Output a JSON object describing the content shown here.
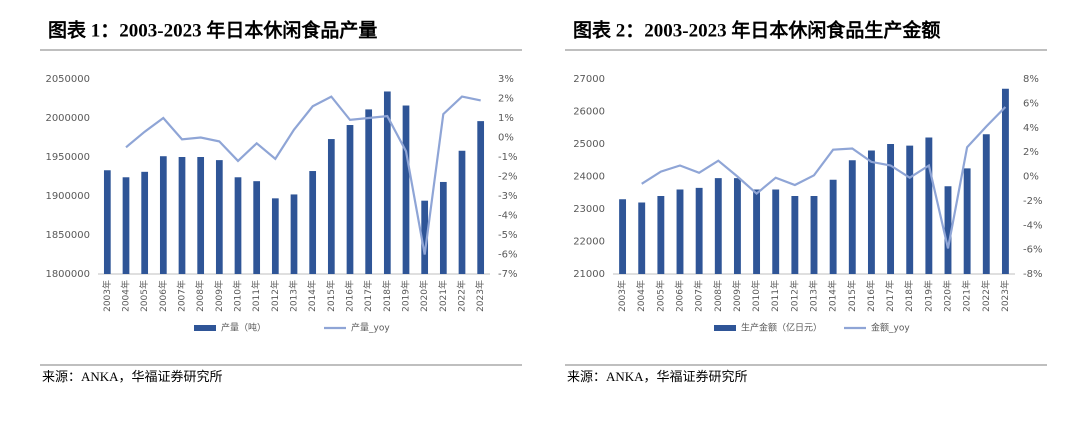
{
  "chart_data": [
    {
      "type": "bar",
      "title": "图表 1：2003-2023 年日本休闲食品产量",
      "source": "来源：ANKA，华福证券研究所",
      "categories": [
        "2003年",
        "2004年",
        "2005年",
        "2006年",
        "2007年",
        "2008年",
        "2009年",
        "2010年",
        "2011年",
        "2012年",
        "2013年",
        "2014年",
        "2015年",
        "2016年",
        "2017年",
        "2018年",
        "2019年",
        "2020年",
        "2021年",
        "2022年",
        "2023年"
      ],
      "series": [
        {
          "name": "产量（吨）",
          "type": "bar",
          "color": "#2f5597",
          "axis": "y",
          "values": [
            1933000,
            1924000,
            1931000,
            1951000,
            1950000,
            1950000,
            1946000,
            1924000,
            1919000,
            1897000,
            1902000,
            1932000,
            1973000,
            1991000,
            2011000,
            2034000,
            2016000,
            1894000,
            1918000,
            1958000,
            1996000
          ]
        },
        {
          "name": "产量_yoy",
          "type": "line",
          "color": "#8fa5d6",
          "axis": "y2",
          "values": [
            null,
            -0.5,
            0.3,
            1.0,
            -0.1,
            0.0,
            -0.2,
            -1.2,
            -0.3,
            -1.1,
            0.4,
            1.6,
            2.1,
            0.9,
            1.0,
            1.1,
            -0.7,
            -6.0,
            1.2,
            2.1,
            1.9
          ]
        }
      ],
      "ylim": [
        1800000,
        2050000
      ],
      "yticks": [
        1800000,
        1850000,
        1900000,
        1950000,
        2000000,
        2050000
      ],
      "y2lim": [
        -7,
        3
      ],
      "y2ticks": [
        {
          "value": -7,
          "label": "-7%"
        },
        {
          "value": -6,
          "label": "-6%"
        },
        {
          "value": -5,
          "label": "-5%"
        },
        {
          "value": -4,
          "label": "-4%"
        },
        {
          "value": -3,
          "label": "-3%"
        },
        {
          "value": -2,
          "label": "-2%"
        },
        {
          "value": -1,
          "label": "-1%"
        },
        {
          "value": 0,
          "label": "0%"
        },
        {
          "value": 1,
          "label": "1%"
        },
        {
          "value": 2,
          "label": "2%"
        },
        {
          "value": 3,
          "label": "3%"
        }
      ],
      "legend": "bottom"
    },
    {
      "type": "bar",
      "title": "图表 2：2003-2023 年日本休闲食品生产金额",
      "source": "来源：ANKA，华福证券研究所",
      "categories": [
        "2003年",
        "2004年",
        "2005年",
        "2006年",
        "2007年",
        "2008年",
        "2009年",
        "2010年",
        "2011年",
        "2012年",
        "2013年",
        "2014年",
        "2015年",
        "2016年",
        "2017年",
        "2018年",
        "2019年",
        "2020年",
        "2021年",
        "2022年",
        "2023年"
      ],
      "series": [
        {
          "name": "生产金额（亿日元）",
          "type": "bar",
          "color": "#2f5597",
          "axis": "y",
          "values": [
            23300,
            23200,
            23400,
            23600,
            23650,
            23950,
            23950,
            23600,
            23600,
            23400,
            23400,
            23900,
            24500,
            24800,
            25000,
            24950,
            25200,
            23700,
            24250,
            25300,
            26700
          ]
        },
        {
          "name": "金额_yoy",
          "type": "line",
          "color": "#8fa5d6",
          "axis": "y2",
          "values": [
            null,
            -0.6,
            0.4,
            0.9,
            0.3,
            1.3,
            0.0,
            -1.4,
            -0.1,
            -0.7,
            0.1,
            2.2,
            2.3,
            1.2,
            0.9,
            -0.1,
            0.9,
            -5.9,
            2.4,
            4.1,
            5.7
          ]
        }
      ],
      "ylim": [
        21000,
        27000
      ],
      "yticks": [
        21000,
        22000,
        23000,
        24000,
        25000,
        26000,
        27000
      ],
      "y2lim": [
        -8,
        8
      ],
      "y2ticks": [
        {
          "value": -8,
          "label": "-8%"
        },
        {
          "value": -6,
          "label": "-6%"
        },
        {
          "value": -4,
          "label": "-4%"
        },
        {
          "value": -2,
          "label": "-2%"
        },
        {
          "value": 0,
          "label": "0%"
        },
        {
          "value": 2,
          "label": "2%"
        },
        {
          "value": 4,
          "label": "4%"
        },
        {
          "value": 6,
          "label": "6%"
        },
        {
          "value": 8,
          "label": "8%"
        }
      ],
      "legend": "bottom"
    }
  ]
}
